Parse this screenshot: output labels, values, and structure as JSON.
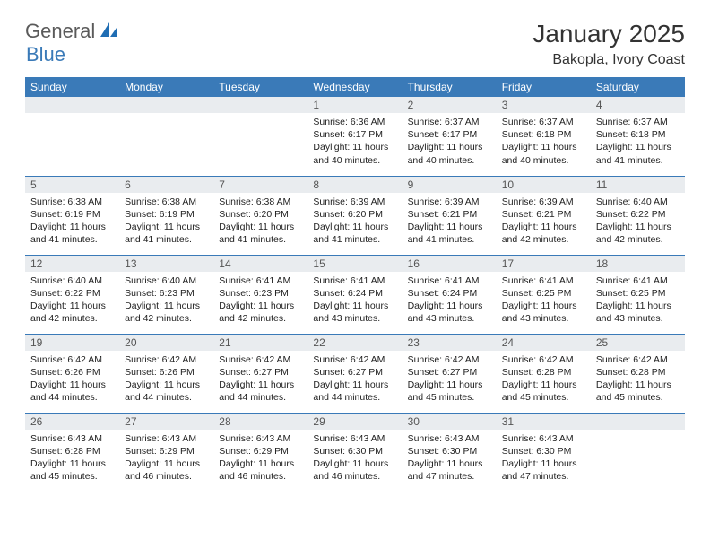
{
  "logo": {
    "part1": "General",
    "part2": "Blue"
  },
  "title": "January 2025",
  "location": "Bakopla, Ivory Coast",
  "colors": {
    "header_bg": "#3a7ab8",
    "daynum_bg": "#e9ecef",
    "border": "#3a7ab8",
    "logo_gray": "#5a5a5a",
    "logo_blue": "#3a7ab8"
  },
  "weekdays": [
    "Sunday",
    "Monday",
    "Tuesday",
    "Wednesday",
    "Thursday",
    "Friday",
    "Saturday"
  ],
  "weeks": [
    [
      null,
      null,
      null,
      {
        "n": "1",
        "sr": "6:36 AM",
        "ss": "6:17 PM",
        "dl": "11 hours and 40 minutes."
      },
      {
        "n": "2",
        "sr": "6:37 AM",
        "ss": "6:17 PM",
        "dl": "11 hours and 40 minutes."
      },
      {
        "n": "3",
        "sr": "6:37 AM",
        "ss": "6:18 PM",
        "dl": "11 hours and 40 minutes."
      },
      {
        "n": "4",
        "sr": "6:37 AM",
        "ss": "6:18 PM",
        "dl": "11 hours and 41 minutes."
      }
    ],
    [
      {
        "n": "5",
        "sr": "6:38 AM",
        "ss": "6:19 PM",
        "dl": "11 hours and 41 minutes."
      },
      {
        "n": "6",
        "sr": "6:38 AM",
        "ss": "6:19 PM",
        "dl": "11 hours and 41 minutes."
      },
      {
        "n": "7",
        "sr": "6:38 AM",
        "ss": "6:20 PM",
        "dl": "11 hours and 41 minutes."
      },
      {
        "n": "8",
        "sr": "6:39 AM",
        "ss": "6:20 PM",
        "dl": "11 hours and 41 minutes."
      },
      {
        "n": "9",
        "sr": "6:39 AM",
        "ss": "6:21 PM",
        "dl": "11 hours and 41 minutes."
      },
      {
        "n": "10",
        "sr": "6:39 AM",
        "ss": "6:21 PM",
        "dl": "11 hours and 42 minutes."
      },
      {
        "n": "11",
        "sr": "6:40 AM",
        "ss": "6:22 PM",
        "dl": "11 hours and 42 minutes."
      }
    ],
    [
      {
        "n": "12",
        "sr": "6:40 AM",
        "ss": "6:22 PM",
        "dl": "11 hours and 42 minutes."
      },
      {
        "n": "13",
        "sr": "6:40 AM",
        "ss": "6:23 PM",
        "dl": "11 hours and 42 minutes."
      },
      {
        "n": "14",
        "sr": "6:41 AM",
        "ss": "6:23 PM",
        "dl": "11 hours and 42 minutes."
      },
      {
        "n": "15",
        "sr": "6:41 AM",
        "ss": "6:24 PM",
        "dl": "11 hours and 43 minutes."
      },
      {
        "n": "16",
        "sr": "6:41 AM",
        "ss": "6:24 PM",
        "dl": "11 hours and 43 minutes."
      },
      {
        "n": "17",
        "sr": "6:41 AM",
        "ss": "6:25 PM",
        "dl": "11 hours and 43 minutes."
      },
      {
        "n": "18",
        "sr": "6:41 AM",
        "ss": "6:25 PM",
        "dl": "11 hours and 43 minutes."
      }
    ],
    [
      {
        "n": "19",
        "sr": "6:42 AM",
        "ss": "6:26 PM",
        "dl": "11 hours and 44 minutes."
      },
      {
        "n": "20",
        "sr": "6:42 AM",
        "ss": "6:26 PM",
        "dl": "11 hours and 44 minutes."
      },
      {
        "n": "21",
        "sr": "6:42 AM",
        "ss": "6:27 PM",
        "dl": "11 hours and 44 minutes."
      },
      {
        "n": "22",
        "sr": "6:42 AM",
        "ss": "6:27 PM",
        "dl": "11 hours and 44 minutes."
      },
      {
        "n": "23",
        "sr": "6:42 AM",
        "ss": "6:27 PM",
        "dl": "11 hours and 45 minutes."
      },
      {
        "n": "24",
        "sr": "6:42 AM",
        "ss": "6:28 PM",
        "dl": "11 hours and 45 minutes."
      },
      {
        "n": "25",
        "sr": "6:42 AM",
        "ss": "6:28 PM",
        "dl": "11 hours and 45 minutes."
      }
    ],
    [
      {
        "n": "26",
        "sr": "6:43 AM",
        "ss": "6:28 PM",
        "dl": "11 hours and 45 minutes."
      },
      {
        "n": "27",
        "sr": "6:43 AM",
        "ss": "6:29 PM",
        "dl": "11 hours and 46 minutes."
      },
      {
        "n": "28",
        "sr": "6:43 AM",
        "ss": "6:29 PM",
        "dl": "11 hours and 46 minutes."
      },
      {
        "n": "29",
        "sr": "6:43 AM",
        "ss": "6:30 PM",
        "dl": "11 hours and 46 minutes."
      },
      {
        "n": "30",
        "sr": "6:43 AM",
        "ss": "6:30 PM",
        "dl": "11 hours and 47 minutes."
      },
      {
        "n": "31",
        "sr": "6:43 AM",
        "ss": "6:30 PM",
        "dl": "11 hours and 47 minutes."
      },
      null
    ]
  ],
  "labels": {
    "sunrise": "Sunrise:",
    "sunset": "Sunset:",
    "daylight": "Daylight:"
  }
}
